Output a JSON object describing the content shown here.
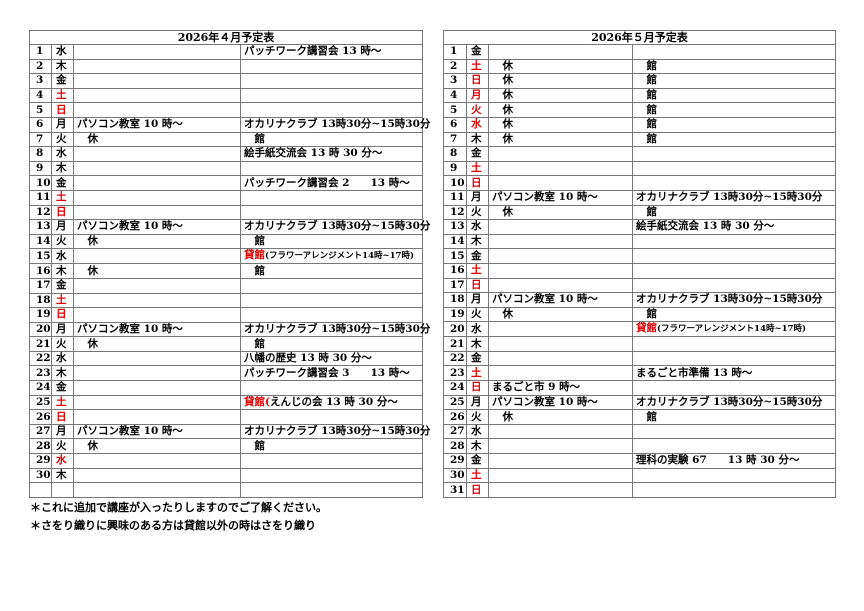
{
  "april": {
    "title": "2026年４月予定表",
    "rows": [
      {
        "n": "1",
        "d": "水",
        "c1": "",
        "c2r": "",
        "c2": "パッチワーク講習会 13 時～"
      },
      {
        "n": "2",
        "d": "木",
        "c1": "",
        "c2r": "",
        "c2": ""
      },
      {
        "n": "3",
        "d": "金",
        "c1": "",
        "c2r": "",
        "c2": ""
      },
      {
        "n": "4",
        "d": "土",
        "red": true,
        "c1": "",
        "c2r": "",
        "c2": ""
      },
      {
        "n": "5",
        "d": "日",
        "red": true,
        "c1": "",
        "c2r": "",
        "c2": ""
      },
      {
        "n": "6",
        "d": "月",
        "c1": "パソコン教室 10 時～",
        "c2r": "",
        "c2": "オカリナクラブ 13時30分~15時30分"
      },
      {
        "n": "7",
        "d": "火",
        "c1": "　休",
        "c2r": "",
        "c2": "　館"
      },
      {
        "n": "8",
        "d": "水",
        "c1": "",
        "c2r": "",
        "c2": "絵手紙交流会 13 時 30 分～"
      },
      {
        "n": "9",
        "d": "木",
        "c1": "",
        "c2r": "",
        "c2": ""
      },
      {
        "n": "10",
        "d": "金",
        "c1": "",
        "c2r": "",
        "c2": "パッチワーク講習会 2　　13 時～"
      },
      {
        "n": "11",
        "d": "土",
        "red": true,
        "c1": "",
        "c2r": "",
        "c2": ""
      },
      {
        "n": "12",
        "d": "日",
        "red": true,
        "c1": "",
        "c2r": "",
        "c2": ""
      },
      {
        "n": "13",
        "d": "月",
        "c1": "パソコン教室 10 時～",
        "c2r": "",
        "c2": "オカリナクラブ 13時30分~15時30分"
      },
      {
        "n": "14",
        "d": "火",
        "c1": "　休",
        "c2r": "",
        "c2": "　館"
      },
      {
        "n": "15",
        "d": "水",
        "c1": "",
        "c2r": "貸館",
        "c2": "(フラワーアレンジメント14時~17時)",
        "small": true
      },
      {
        "n": "16",
        "d": "木",
        "c1": "　休",
        "c2r": "",
        "c2": "　館"
      },
      {
        "n": "17",
        "d": "金",
        "c1": "",
        "c2r": "",
        "c2": ""
      },
      {
        "n": "18",
        "d": "土",
        "red": true,
        "c1": "",
        "c2r": "",
        "c2": ""
      },
      {
        "n": "19",
        "d": "日",
        "red": true,
        "c1": "",
        "c2r": "",
        "c2": ""
      },
      {
        "n": "20",
        "d": "月",
        "c1": "パソコン教室 10 時～",
        "c2r": "",
        "c2": "オカリナクラブ 13時30分~15時30分"
      },
      {
        "n": "21",
        "d": "火",
        "c1": "　休",
        "c2r": "",
        "c2": "　館"
      },
      {
        "n": "22",
        "d": "水",
        "c1": "",
        "c2r": "",
        "c2": "八幡の歴史 13 時 30 分～"
      },
      {
        "n": "23",
        "d": "木",
        "c1": "",
        "c2r": "",
        "c2": "パッチワーク講習会 3　　13 時～"
      },
      {
        "n": "24",
        "d": "金",
        "c1": "",
        "c2r": "",
        "c2": ""
      },
      {
        "n": "25",
        "d": "土",
        "red": true,
        "c1": "",
        "c2r": "貸館(",
        "c2": "えんじの会 13 時 30 分～"
      },
      {
        "n": "26",
        "d": "日",
        "red": true,
        "c1": "",
        "c2r": "",
        "c2": ""
      },
      {
        "n": "27",
        "d": "月",
        "c1": "パソコン教室 10 時～",
        "c2r": "",
        "c2": "オカリナクラブ 13時30分~15時30分"
      },
      {
        "n": "28",
        "d": "火",
        "c1": "　休",
        "c2r": "",
        "c2": "　館"
      },
      {
        "n": "29",
        "d": "水",
        "red": true,
        "c1": "",
        "c2r": "",
        "c2": ""
      },
      {
        "n": "30",
        "d": "木",
        "c1": "",
        "c2r": "",
        "c2": ""
      },
      {
        "n": "",
        "d": "",
        "c1": "",
        "c2r": "",
        "c2": ""
      }
    ]
  },
  "may": {
    "title": "2026年５月予定表",
    "rows": [
      {
        "n": "1",
        "d": "金",
        "c1": "",
        "c2r": "",
        "c2": ""
      },
      {
        "n": "2",
        "d": "土",
        "red": true,
        "c1": "　休",
        "c2r": "",
        "c2": "　館"
      },
      {
        "n": "3",
        "d": "日",
        "red": true,
        "c1": "　休",
        "c2r": "",
        "c2": "　館"
      },
      {
        "n": "4",
        "d": "月",
        "red": true,
        "c1": "　休",
        "c2r": "",
        "c2": "　館"
      },
      {
        "n": "5",
        "d": "火",
        "red": true,
        "c1": "　休",
        "c2r": "",
        "c2": "　館"
      },
      {
        "n": "6",
        "d": "水",
        "red": true,
        "c1": "　休",
        "c2r": "",
        "c2": "　館"
      },
      {
        "n": "7",
        "d": "木",
        "c1": "　休",
        "c2r": "",
        "c2": "　館"
      },
      {
        "n": "8",
        "d": "金",
        "c1": "",
        "c2r": "",
        "c2": ""
      },
      {
        "n": "9",
        "d": "土",
        "red": true,
        "c1": "",
        "c2r": "",
        "c2": ""
      },
      {
        "n": "10",
        "d": "日",
        "red": true,
        "c1": "",
        "c2r": "",
        "c2": ""
      },
      {
        "n": "11",
        "d": "月",
        "c1": "パソコン教室 10 時～",
        "c2r": "",
        "c2": "オカリナクラブ 13時30分~15時30分"
      },
      {
        "n": "12",
        "d": "火",
        "c1": "　休",
        "c2r": "",
        "c2": "　館"
      },
      {
        "n": "13",
        "d": "水",
        "c1": "",
        "c2r": "",
        "c2": "絵手紙交流会 13 時 30 分～"
      },
      {
        "n": "14",
        "d": "木",
        "c1": "",
        "c2r": "",
        "c2": ""
      },
      {
        "n": "15",
        "d": "金",
        "c1": "",
        "c2r": "",
        "c2": ""
      },
      {
        "n": "16",
        "d": "土",
        "red": true,
        "c1": "",
        "c2r": "",
        "c2": ""
      },
      {
        "n": "17",
        "d": "日",
        "red": true,
        "c1": "",
        "c2r": "",
        "c2": ""
      },
      {
        "n": "18",
        "d": "月",
        "c1": "パソコン教室 10 時～",
        "c2r": "",
        "c2": "オカリナクラブ 13時30分~15時30分"
      },
      {
        "n": "19",
        "d": "火",
        "c1": "　休",
        "c2r": "",
        "c2": "　館"
      },
      {
        "n": "20",
        "d": "水",
        "c1": "",
        "c2r": "貸館",
        "c2": "(フラワーアレンジメント14時~17時)",
        "small": true
      },
      {
        "n": "21",
        "d": "木",
        "c1": "",
        "c2r": "",
        "c2": ""
      },
      {
        "n": "22",
        "d": "金",
        "c1": "",
        "c2r": "",
        "c2": ""
      },
      {
        "n": "23",
        "d": "土",
        "red": true,
        "c1": "",
        "c2r": "",
        "c2": "まるごと市準備 13 時～"
      },
      {
        "n": "24",
        "d": "日",
        "red": true,
        "c1": "まるごと市 9 時～",
        "c2r": "",
        "c2": ""
      },
      {
        "n": "25",
        "d": "月",
        "c1": "パソコン教室 10 時～",
        "c2r": "",
        "c2": "オカリナクラブ 13時30分~15時30分"
      },
      {
        "n": "26",
        "d": "火",
        "c1": "　休",
        "c2r": "",
        "c2": "　館"
      },
      {
        "n": "27",
        "d": "水",
        "c1": "",
        "c2r": "",
        "c2": ""
      },
      {
        "n": "28",
        "d": "木",
        "c1": "",
        "c2r": "",
        "c2": ""
      },
      {
        "n": "29",
        "d": "金",
        "c1": "",
        "c2r": "",
        "c2": "理科の実験 67　　13 時 30 分～"
      },
      {
        "n": "30",
        "d": "土",
        "red": true,
        "c1": "",
        "c2r": "",
        "c2": ""
      },
      {
        "n": "31",
        "d": "日",
        "red": true,
        "c1": "",
        "c2r": "",
        "c2": ""
      }
    ]
  },
  "notes": [
    "＊これに追加で講座が入ったりしますのでご了解ください。",
    "＊さをり織りに興味のある方は貸館以外の時はさをり織り"
  ],
  "colors": {
    "holiday": "#e00000",
    "border": "#777777"
  }
}
